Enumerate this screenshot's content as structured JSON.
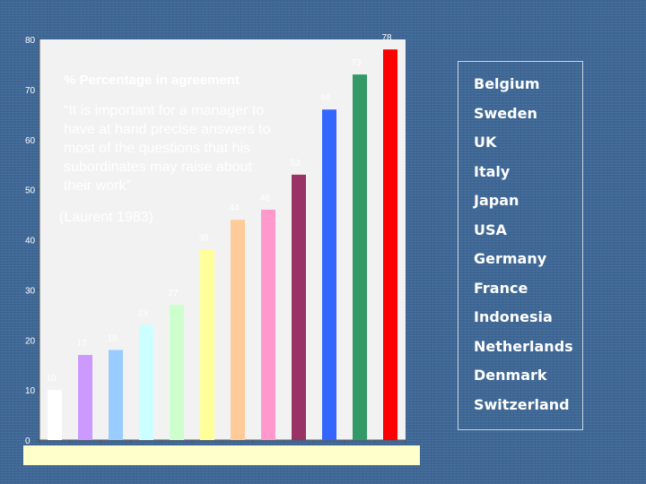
{
  "chart_data": {
    "type": "bar",
    "title": "% Percentage in agreement",
    "quote": "“It is important for a manager to have at hand precise answers to most of the questions that his subordinates may raise about their work”",
    "quote_lines": [
      "“It is important for a manager to",
      "have at hand precise answers to",
      "most of the questions that his",
      "subordinates may raise about",
      "their work”"
    ],
    "source": "(Laurent 1983)",
    "categories": [
      "Switzerland",
      "Denmark",
      "Netherlands",
      "Indonesia",
      "France",
      "Germany",
      "USA",
      "Japan",
      "Italy",
      "UK",
      "Sweden",
      "Belgium"
    ],
    "values": [
      10,
      17,
      18,
      23,
      27,
      38,
      44,
      46,
      53,
      66,
      73,
      78
    ],
    "value_labels": [
      "10",
      "17",
      "18",
      "23",
      "27",
      "38",
      "44",
      "46",
      "53",
      "66",
      "73",
      "78"
    ],
    "colors": [
      "#ffffff",
      "#cc99ff",
      "#99ccff",
      "#ccffff",
      "#ccffcc",
      "#ffff99",
      "#ffcc99",
      "#ff99cc",
      "#993366",
      "#3366ff",
      "#339966",
      "#ff0000"
    ],
    "ylim": [
      0,
      80
    ],
    "yticks": [
      0,
      10,
      20,
      30,
      40,
      50,
      60,
      70,
      80
    ],
    "ytick_labels": [
      "0",
      "10",
      "20",
      "30",
      "40",
      "50",
      "60",
      "70",
      "80"
    ],
    "legend_placement": "right",
    "legend_entries": [
      "Belgium",
      "Sweden",
      "UK",
      "Italy",
      "Japan",
      "USA",
      "Germany",
      "France",
      "Indonesia",
      "Netherlands",
      "Denmark",
      "Switzerland"
    ],
    "xlabel": "",
    "ylabel": "",
    "grid": false
  }
}
